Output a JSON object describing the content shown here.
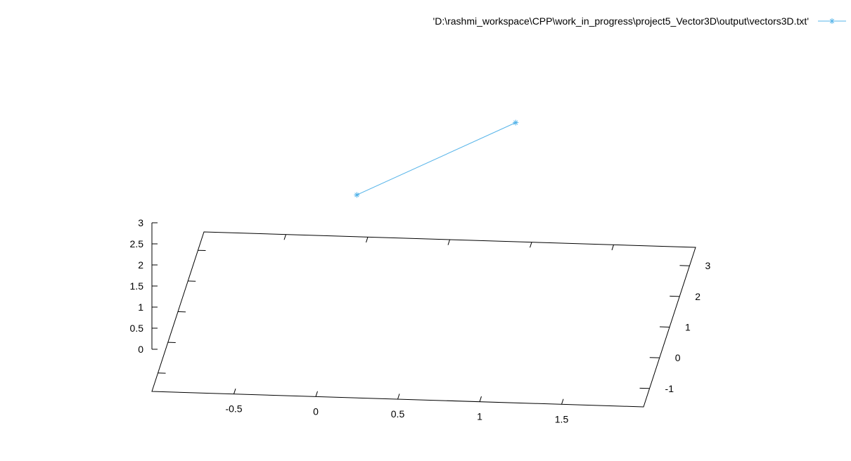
{
  "chart_data": {
    "type": "scatter",
    "projection": "3d",
    "title": "",
    "xlabel": "",
    "ylabel": "",
    "zlabel": "",
    "xlim": [
      -1,
      2
    ],
    "ylim": [
      -1.6,
      3.6
    ],
    "zlim": [
      -1,
      3
    ],
    "x_ticks": [
      -0.5,
      0,
      0.5,
      1,
      1.5
    ],
    "x_tick_labels": [
      "-0.5",
      "0",
      "0.5",
      "1",
      "1.5"
    ],
    "y_ticks": [
      -1,
      0,
      1,
      2,
      3
    ],
    "y_tick_labels": [
      "-1",
      "0",
      "1",
      "2",
      "3"
    ],
    "z_ticks": [
      0,
      0.5,
      1,
      1.5,
      2,
      2.5,
      3
    ],
    "z_tick_labels": [
      "0",
      "0.5",
      "1",
      "1.5",
      "2",
      "2.5",
      "3"
    ],
    "grid": false,
    "legend_position": "top-right",
    "marker": "asterisk",
    "line_color": "#56b4e9",
    "axis_color": "#000000",
    "series": [
      {
        "name": "'D:\\rashmi_workspace\\CPP\\work_in_progress\\project5_Vector3D\\output\\vectors3D.txt'",
        "points": [
          {
            "x": 0.0,
            "y": 2.5,
            "z": 0.8
          },
          {
            "x": 1.0,
            "y": 2.0,
            "z": 3.0
          }
        ]
      }
    ]
  }
}
